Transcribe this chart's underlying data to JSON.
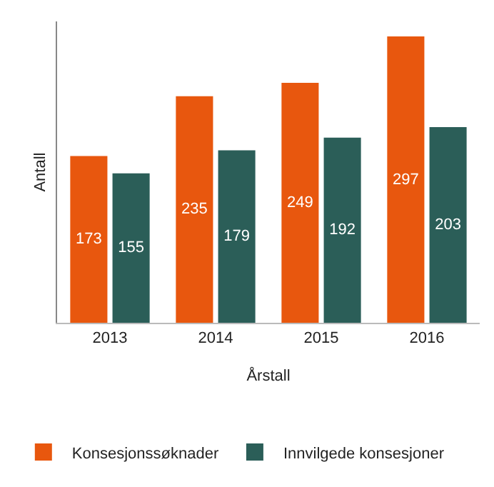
{
  "chart_data": {
    "type": "bar",
    "xlabel": "Årstall",
    "ylabel": "Antall",
    "categories": [
      "2013",
      "2014",
      "2015",
      "2016"
    ],
    "series": [
      {
        "name": "Konsesjonssøknader",
        "color": "#e8570e",
        "values": [
          173,
          235,
          249,
          297
        ]
      },
      {
        "name": "Innvilgede konsesjoner",
        "color": "#2b5e58",
        "values": [
          155,
          179,
          192,
          203
        ]
      }
    ],
    "data_labels": true,
    "legend": "bottom",
    "grid": false
  }
}
